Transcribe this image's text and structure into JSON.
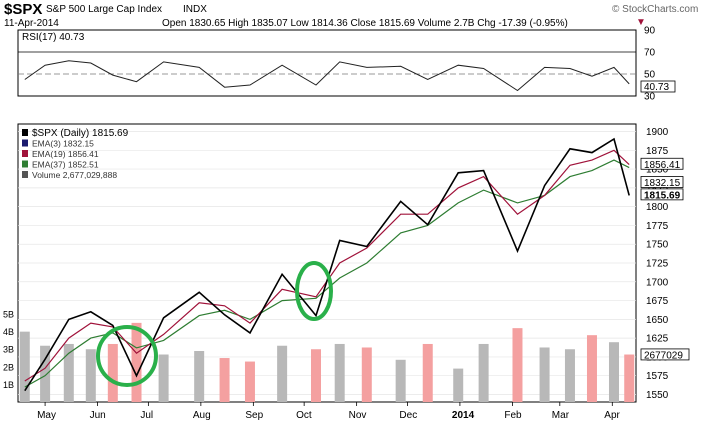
{
  "header": {
    "symbol": "$SPX",
    "name": "S&P 500 Large Cap Index",
    "exchange": "INDX",
    "date": "11-Apr-2014",
    "ohlc_text": "Open 1830.65  High 1835.07  Low 1814.36  Close 1815.69  Volume 2.7B  Chg -17.39 (-0.95%)",
    "chg_marker": "▼",
    "copyright": "© StockCharts.com"
  },
  "colors": {
    "price": "#000000",
    "ema3": "#1a1a6e",
    "ema19": "#a0123a",
    "ema37": "#2e7d32",
    "volume_up": "#b8b8b8",
    "volume_down": "#f4a0a0",
    "circle": "#2ab04a",
    "panel_border": "#000000",
    "grid": "#e6e6e6"
  },
  "chart_data": [
    {
      "panel": "rsi",
      "type": "line",
      "label": "RSI(17) 40.73",
      "ylim": [
        30,
        90
      ],
      "y_ticks": [
        "90",
        "70",
        "50",
        "30"
      ],
      "last_value_label": "40.73",
      "x": [
        "2013-04-19",
        "2013-05-01",
        "2013-05-15",
        "2013-05-28",
        "2013-06-10",
        "2013-06-24",
        "2013-07-10",
        "2013-07-31",
        "2013-08-15",
        "2013-08-30",
        "2013-09-18",
        "2013-10-08",
        "2013-10-22",
        "2013-11-07",
        "2013-11-27",
        "2013-12-13",
        "2013-12-31",
        "2014-01-15",
        "2014-02-04",
        "2014-02-20",
        "2014-03-07",
        "2014-03-20",
        "2014-04-02",
        "2014-04-11"
      ],
      "values": [
        45,
        58,
        62,
        60,
        49,
        43,
        61,
        56,
        38,
        40,
        58,
        40,
        61,
        56,
        57,
        45,
        58,
        55,
        35,
        56,
        55,
        48,
        56,
        41
      ]
    },
    {
      "panel": "price",
      "type": "line",
      "legend": [
        {
          "key": "spx",
          "text": "$SPX (Daily) 1815.69"
        },
        {
          "key": "ema3",
          "text": "EMA(3) 1832.15"
        },
        {
          "key": "ema19",
          "text": "EMA(19) 1856.41"
        },
        {
          "key": "ema37",
          "text": "EMA(37) 1852.51"
        },
        {
          "key": "volume",
          "text": "Volume 2,677,029,888"
        }
      ],
      "ylim": [
        1540,
        1910
      ],
      "y_ticks": [
        "1900",
        "1875",
        "1850",
        "1825",
        "1800",
        "1775",
        "1750",
        "1725",
        "1700",
        "1675",
        "1650",
        "1625",
        "1600",
        "1575",
        "1550"
      ],
      "right_labels": {
        "ema19": "1856.41",
        "ema3": "1832.15",
        "close": "1815.69",
        "volume": "2677029"
      },
      "volume_ticks": [
        "5B",
        "4B",
        "3B",
        "2B",
        "1B"
      ],
      "x_months": [
        "May",
        "Jun",
        "Jul",
        "Aug",
        "Sep",
        "Oct",
        "Nov",
        "Dec",
        "2014",
        "Feb",
        "Mar",
        "Apr"
      ],
      "x": [
        "2013-04-19",
        "2013-05-01",
        "2013-05-15",
        "2013-05-28",
        "2013-06-10",
        "2013-06-24",
        "2013-07-10",
        "2013-07-31",
        "2013-08-15",
        "2013-08-30",
        "2013-09-18",
        "2013-10-08",
        "2013-10-22",
        "2013-11-07",
        "2013-11-27",
        "2013-12-13",
        "2013-12-31",
        "2014-01-15",
        "2014-02-04",
        "2014-02-20",
        "2014-03-07",
        "2014-03-20",
        "2014-04-02",
        "2014-04-11"
      ],
      "series": [
        {
          "name": "$SPX",
          "key": "spx",
          "values": [
            1555,
            1597,
            1650,
            1660,
            1642,
            1575,
            1652,
            1686,
            1656,
            1632,
            1710,
            1655,
            1755,
            1747,
            1807,
            1776,
            1845,
            1848,
            1741,
            1828,
            1877,
            1872,
            1890,
            1815
          ]
        },
        {
          "name": "EMA(19)",
          "key": "ema19",
          "values": [
            1568,
            1585,
            1625,
            1645,
            1640,
            1605,
            1630,
            1672,
            1668,
            1645,
            1690,
            1680,
            1725,
            1745,
            1790,
            1790,
            1825,
            1840,
            1790,
            1815,
            1855,
            1862,
            1875,
            1856
          ]
        },
        {
          "name": "EMA(37)",
          "key": "ema37",
          "values": [
            1560,
            1575,
            1605,
            1625,
            1632,
            1612,
            1622,
            1655,
            1662,
            1650,
            1675,
            1678,
            1705,
            1725,
            1765,
            1775,
            1805,
            1822,
            1805,
            1815,
            1840,
            1848,
            1862,
            1852
          ]
        }
      ],
      "volume_bn": [
        4.0,
        3.2,
        3.3,
        3.0,
        3.3,
        4.5,
        2.7,
        2.9,
        2.5,
        2.3,
        3.2,
        3.0,
        3.3,
        3.1,
        2.4,
        3.3,
        1.9,
        3.3,
        4.2,
        3.1,
        3.0,
        3.8,
        3.4,
        2.7
      ]
    }
  ]
}
